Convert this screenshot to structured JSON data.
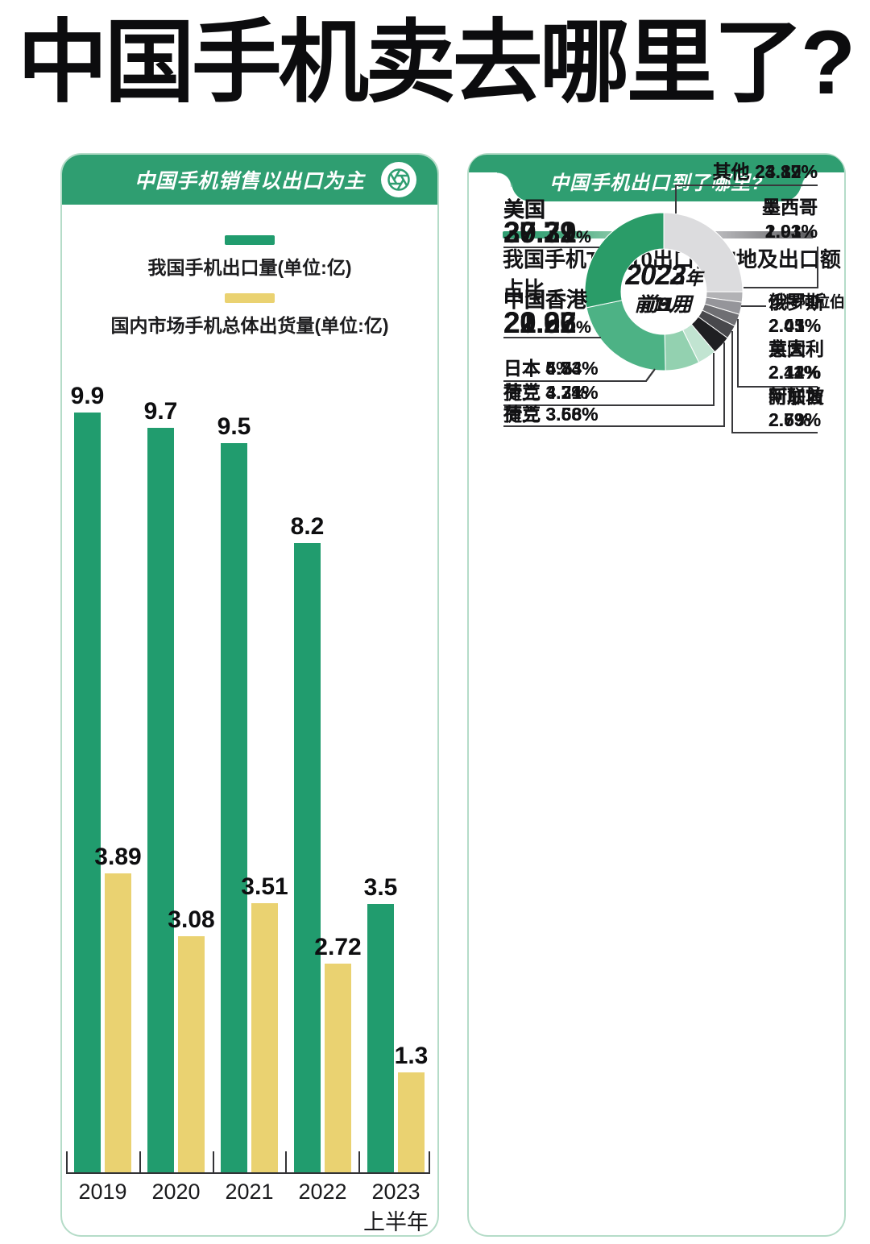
{
  "page": {
    "title": "中国手机卖去哪里了?"
  },
  "left_panel": {
    "header": "中国手机销售以出口为主",
    "logo_icon": "aperture-icon",
    "legend": [
      {
        "label": "我国手机出口量(单位:亿)",
        "color": "#219c6e"
      },
      {
        "label": "国内市场手机总体出货量(单位:亿)",
        "color": "#ead271"
      }
    ]
  },
  "right_panel": {
    "header": "中国手机出口到了哪里?",
    "subtitle": "我国手机TOP10出口目的地及出口额占比",
    "gradient_bar_colors": [
      "#2f9e71",
      "#8ecbaa",
      "#cde4d6",
      "#98989b",
      "#58585b"
    ]
  },
  "chart_data": [
    {
      "type": "bar",
      "title": "中国手机销售以出口为主",
      "categories": [
        "2019",
        "2020",
        "2021",
        "2022",
        "2023"
      ],
      "category_sublabels": [
        "",
        "",
        "",
        "",
        "上半年"
      ],
      "ylim": [
        0,
        10.4
      ],
      "grid": false,
      "legend_position": "top",
      "series": [
        {
          "name": "我国手机出口量(单位:亿)",
          "color": "#219c6e",
          "values": [
            9.9,
            9.7,
            9.5,
            8.2,
            3.5
          ],
          "labels": [
            "9.9",
            "9.7",
            "9.5",
            "8.2",
            "3.5"
          ]
        },
        {
          "name": "国内市场手机总体出货量(单位:亿)",
          "color": "#ead271",
          "values": [
            3.89,
            3.08,
            3.51,
            2.72,
            1.3
          ],
          "labels": [
            "3.89",
            "3.08",
            "3.51",
            "2.72",
            "1.3"
          ]
        }
      ]
    },
    {
      "type": "pie",
      "title": "2022年前9月",
      "center": {
        "line1_big": "2022",
        "line1_small": "年",
        "line2": "前9月"
      },
      "segments": [
        {
          "name": "其他",
          "value": 23.89,
          "display": "23.89%",
          "color": "#dcdcde"
        },
        {
          "name": "墨西哥",
          "value": 2.03,
          "display": "2.03%",
          "color": "#b2b2b5"
        },
        {
          "name": "俄罗斯",
          "value": 2.05,
          "display": "2.05%",
          "color": "#95959a"
        },
        {
          "name": "意大利",
          "value": 2.11,
          "display": "2.11%",
          "color": "#6f6f73"
        },
        {
          "name": "阿联酋",
          "value": 2.6,
          "display": "2.6%",
          "color": "#48484c"
        },
        {
          "name": "捷克",
          "value": 3.68,
          "display": "3.68%",
          "color": "#1f1f22"
        },
        {
          "name": "荷兰",
          "value": 4.34,
          "display": "4.34%",
          "color": "#c1e4d1"
        },
        {
          "name": "日本",
          "value": 5,
          "display": "5%",
          "color": "#93d1b0"
        },
        {
          "name": "中国香港",
          "value": 20.96,
          "display": "20.96%",
          "color": "#4db285"
        },
        {
          "name": "美国",
          "value": 30.31,
          "display": "30.31%",
          "color": "#2a9c68"
        }
      ],
      "left_labels": [
        {
          "name": "美国",
          "value": "30.31",
          "suffix": "%",
          "big": true
        },
        {
          "name": "中国香港",
          "value": "20.96",
          "suffix": "%",
          "big": true
        },
        {
          "name": "日本",
          "display": "5%"
        },
        {
          "name": "荷兰",
          "display": "4.34%"
        },
        {
          "name": "捷克",
          "display": "3.68%"
        }
      ],
      "right_labels": [
        {
          "name": "其他",
          "display": "23.89%"
        },
        {
          "name": "墨西哥",
          "display": "2.03%"
        },
        {
          "name": "俄罗斯",
          "display": "2.05%"
        },
        {
          "name": "意大利",
          "display": "2.11%"
        },
        {
          "name": "阿联酋",
          "display": "2.6%"
        }
      ]
    },
    {
      "type": "pie",
      "title": "2022年前11月",
      "center": {
        "line1_big": "2022",
        "line1_small": "年",
        "line2": "前11月"
      },
      "segments": [
        {
          "name": "其他",
          "value": 23.37,
          "display": "23.37%",
          "color": "#dcdcde"
        },
        {
          "name": "墨西哥",
          "value": 1.91,
          "display": "1.91%",
          "color": "#b2b2b5"
        },
        {
          "name": "俄罗斯",
          "value": 2.03,
          "display": "2.03%",
          "color": "#95959a"
        },
        {
          "name": "意大利",
          "value": 2.14,
          "display": "2.14%",
          "color": "#6f6f73"
        },
        {
          "name": "阿联酋",
          "value": 2.59,
          "display": "2.59%",
          "color": "#48484c"
        },
        {
          "name": "捷克",
          "value": 3.56,
          "display": "3.56%",
          "color": "#1f1f22"
        },
        {
          "name": "荷兰",
          "value": 4.2,
          "display": "4.2%",
          "color": "#c1e4d1"
        },
        {
          "name": "日本",
          "value": 4.83,
          "display": "4.83%",
          "color": "#93d1b0"
        },
        {
          "name": "中国香港",
          "value": 22.62,
          "display": "22.62%",
          "color": "#4db285"
        },
        {
          "name": "美国",
          "value": 29.79,
          "display": "29.79%",
          "color": "#2a9c68"
        }
      ],
      "left_labels": [
        {
          "name": "美国",
          "value": "29.79",
          "suffix": "%",
          "big": true
        },
        {
          "name": "中国香港",
          "value": "22.62",
          "suffix": "%",
          "big": true
        },
        {
          "name": "日本",
          "display": "4.83%"
        },
        {
          "name": "荷兰",
          "display": "4.2%"
        },
        {
          "name": "捷克",
          "display": "3.56%"
        }
      ],
      "right_labels": [
        {
          "name": "其他",
          "display": "23.37%"
        },
        {
          "name": "墨西哥",
          "display": "1.91%"
        },
        {
          "name": "俄罗斯",
          "display": "2.03%"
        },
        {
          "name": "意大利",
          "display": "2.14%"
        },
        {
          "name": "阿联酋",
          "display": "2.59%"
        }
      ]
    },
    {
      "type": "pie",
      "title": "2023年前5月",
      "center": {
        "line1_big": "2023",
        "line1_small": "年",
        "line2": "前5月"
      },
      "segments": [
        {
          "name": "其他",
          "value": 24.12,
          "display": "24.12%",
          "color": "#dcdcde"
        },
        {
          "name": "墨西哥",
          "value": 2.03,
          "display": "2.03%",
          "color": "#b2b2b5"
        },
        {
          "name": "沙特阿拉伯",
          "value": 2.41,
          "display": "2.41%",
          "color": "#95959a"
        },
        {
          "name": "英国",
          "value": 2.42,
          "display": "2.42%",
          "color": "#6f6f73"
        },
        {
          "name": "新加坡",
          "value": 2.73,
          "display": "2.73%",
          "color": "#48484c"
        },
        {
          "name": "荷兰",
          "value": 3.68,
          "display": "3.68%",
          "color": "#1f1f22"
        },
        {
          "name": "捷克",
          "value": 3.71,
          "display": "3.71%",
          "color": "#c1e4d1"
        },
        {
          "name": "日本",
          "value": 6.74,
          "display": "6.74%",
          "color": "#93d1b0"
        },
        {
          "name": "中国香港",
          "value": 21.27,
          "display": "21.27%",
          "color": "#4db285"
        },
        {
          "name": "美国",
          "value": 27.22,
          "display": "27.22%",
          "color": "#2a9c68"
        }
      ],
      "left_labels": [
        {
          "name": "美国",
          "value": "27.22",
          "suffix": "%",
          "big": true
        },
        {
          "name": "中国香港",
          "value": "21.27",
          "suffix": "%",
          "big": true
        },
        {
          "name": "日本",
          "display": "6.74%"
        },
        {
          "name": "捷克",
          "display": "3.71%"
        },
        {
          "name": "荷兰",
          "display": "3.68%"
        }
      ],
      "right_labels": [
        {
          "name": "其他",
          "display": "24.12%"
        },
        {
          "name": "墨西哥",
          "display": "2.03%"
        },
        {
          "name": "沙特阿拉伯",
          "display": "2.41%"
        },
        {
          "name": "英国",
          "display": "2.42%"
        },
        {
          "name": "新加坡",
          "display": "2.73%"
        }
      ]
    }
  ]
}
